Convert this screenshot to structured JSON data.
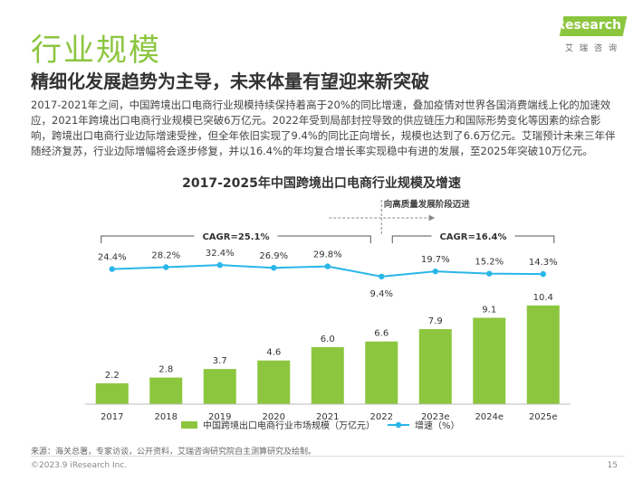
{
  "header": {
    "title": "行业规模",
    "subtitle": "精细化发展趋势为主导，未来体量有望迎来新突破",
    "paragraph": "2017-2021年之间，中国跨境出口电商行业规模持续保持着高于20%的同比增速，叠加疫情对世界各国消费端线上化的加速效应，2021年跨境出口电商行业规模已突破6万亿元。2022年受到局部封控导致的供应链压力和国际形势变化等因素的综合影响，跨境出口电商行业边际增速受挫，但全年依旧实现了9.4%的同比正向增长，规模也达到了6.6万亿元。艾瑞预计未来三年伴随经济复苏，行业边际增幅将会逐步修复，并以16.4%的年均复合增长率实现稳中有进的发展，至2025年突破10万亿元。"
  },
  "logo": {
    "text": "iResearch",
    "cn": "艾瑞咨询"
  },
  "chart_title": "2017-2025年中国跨境出口电商行业规模及增速",
  "chart_data": {
    "type": "bar",
    "categories": [
      "2017",
      "2018",
      "2019",
      "2020",
      "2021",
      "2022",
      "2023e",
      "2024e",
      "2025e"
    ],
    "series": [
      {
        "name": "中国跨境出口电商行业市场规模（万亿元）",
        "type": "bar",
        "values": [
          2.2,
          2.8,
          3.7,
          4.6,
          6.0,
          6.6,
          7.9,
          9.1,
          10.4
        ],
        "color": "#8cc63f"
      },
      {
        "name": "增速（%）",
        "type": "line",
        "values": [
          24.4,
          28.2,
          32.4,
          26.9,
          29.8,
          9.4,
          19.7,
          15.2,
          14.3
        ],
        "color": "#29b6e8"
      }
    ],
    "value_labels": [
      "2.2",
      "2.8",
      "3.7",
      "4.6",
      "6.0",
      "6.6",
      "7.9",
      "9.1",
      "10.4"
    ],
    "rate_labels": [
      "24.4%",
      "28.2%",
      "32.4%",
      "26.9%",
      "29.8%",
      "9.4%",
      "19.7%",
      "15.2%",
      "14.3%"
    ],
    "annotations": {
      "cagr_left": "CAGR=25.1%",
      "cagr_right": "CAGR=16.4%",
      "arrow_label": "向高质量发展阶段迈进"
    },
    "legend_position": "bottom",
    "grid": false
  },
  "footer": {
    "source": "来源：海关总署，专家访谈，公开资料，艾瑞咨询研究院自主测算研究及绘制。",
    "copyright": "©2023.9 iResearch Inc.",
    "page": "15"
  }
}
